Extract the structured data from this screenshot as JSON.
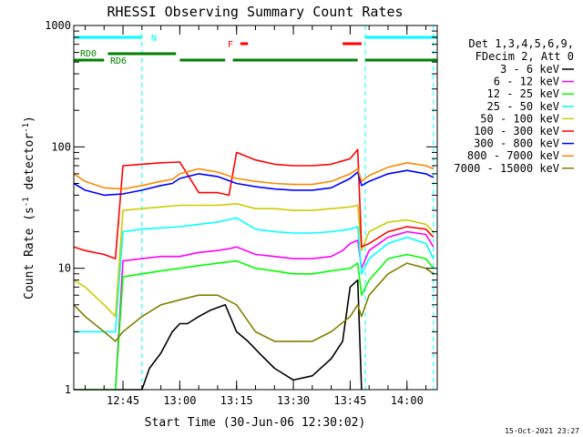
{
  "chart_data": {
    "type": "line",
    "title": "RHESSI Observing Summary Count Rates",
    "xlabel": "Start Time (30-Jun-06 12:30:02)",
    "ylabel_main": "Count Rate (s",
    "ylabel_sup1": "-1",
    "ylabel_mid": " detector",
    "ylabel_sup2": "-1",
    "ylabel_end": ")",
    "y_scale": "log",
    "ylim": [
      1,
      1000
    ],
    "xlim": [
      "12:32",
      "14:08"
    ],
    "x_ticks": [
      "12:45",
      "13:00",
      "13:15",
      "13:30",
      "13:45",
      "14:00"
    ],
    "y_ticks": [
      "1",
      "10",
      "100",
      "1000"
    ],
    "grid": false,
    "legend_position": "right",
    "legend_header": [
      "Det 1,3,4,5,6,9,",
      "FDecim 2, Att 0"
    ],
    "timestamp": "15-Oct-2021 23:27",
    "flags": {
      "night_label": "N",
      "flare_label": "F",
      "rd0_label": "RD0",
      "rd6_label": "RD6",
      "night_color": "#00ffff",
      "flare_color": "#ff0000",
      "decim_color": "#008000",
      "night_intervals": [
        [
          "12:32",
          "12:50"
        ],
        [
          "13:49",
          "14:08"
        ]
      ],
      "flare_intervals": [
        [
          "13:16",
          "13:18"
        ],
        [
          "13:43",
          "13:48"
        ]
      ],
      "decim_intervals": [
        [
          "12:32",
          "12:40"
        ],
        [
          "12:41",
          "12:59"
        ],
        [
          "13:00",
          "13:12"
        ],
        [
          "13:14",
          "13:47"
        ],
        [
          "13:49",
          "14:08"
        ]
      ],
      "night_boundaries": [
        "12:50",
        "13:49",
        "14:07"
      ]
    },
    "series": [
      {
        "name": "3 - 6 keV",
        "color": "#000000",
        "x": [
          "12:32",
          "12:40",
          "12:45",
          "12:50",
          "12:52",
          "12:55",
          "12:58",
          "13:00",
          "13:02",
          "13:05",
          "13:08",
          "13:12",
          "13:15",
          "13:18",
          "13:21",
          "13:25",
          "13:30",
          "13:35",
          "13:40",
          "13:43",
          "13:45",
          "13:47",
          "13:48"
        ],
        "y": [
          1,
          1,
          1,
          1,
          1.5,
          2,
          3,
          3.5,
          3.5,
          4,
          4.5,
          5,
          3,
          2.5,
          2,
          1.5,
          1.2,
          1.3,
          1.8,
          2.5,
          7,
          8,
          1
        ]
      },
      {
        "name": "6 - 12 keV",
        "color": "#ff00ff",
        "x": [
          "12:32",
          "12:35",
          "12:40",
          "12:43",
          "12:45",
          "12:50",
          "12:55",
          "13:00",
          "13:05",
          "13:10",
          "13:13",
          "13:15",
          "13:20",
          "13:25",
          "13:30",
          "13:35",
          "13:40",
          "13:43",
          "13:45",
          "13:47",
          "13:48",
          "13:50",
          "13:55",
          "14:00",
          "14:05",
          "14:07"
        ],
        "y": [
          1,
          1,
          1,
          1,
          11.5,
          12,
          12.5,
          12.5,
          13.5,
          14,
          14.5,
          15,
          13,
          12.5,
          12,
          12,
          12.5,
          14,
          16,
          17,
          10,
          14,
          18,
          20,
          19,
          15
        ]
      },
      {
        "name": "12 - 25 keV",
        "color": "#00ff00",
        "x": [
          "12:32",
          "12:40",
          "12:43",
          "12:45",
          "12:50",
          "12:55",
          "13:00",
          "13:05",
          "13:10",
          "13:15",
          "13:20",
          "13:25",
          "13:30",
          "13:35",
          "13:40",
          "13:45",
          "13:47",
          "13:48",
          "13:50",
          "13:55",
          "14:00",
          "14:05",
          "14:07"
        ],
        "y": [
          1,
          1,
          1,
          8.5,
          9,
          9.5,
          10,
          10.5,
          11,
          11.5,
          10,
          9.5,
          9,
          9,
          9.5,
          10,
          11,
          6,
          8,
          12,
          13,
          12,
          10
        ]
      },
      {
        "name": "25 - 50 keV",
        "color": "#00ffff",
        "x": [
          "12:32",
          "12:40",
          "12:43",
          "12:45",
          "12:50",
          "12:55",
          "13:00",
          "13:05",
          "13:10",
          "13:15",
          "13:20",
          "13:25",
          "13:30",
          "13:35",
          "13:40",
          "13:45",
          "13:47",
          "13:48",
          "13:50",
          "13:55",
          "14:00",
          "14:05",
          "14:07"
        ],
        "y": [
          3,
          3,
          3,
          20,
          21,
          21.5,
          22,
          23,
          24,
          26,
          21,
          20,
          19.5,
          19.5,
          20,
          21,
          22,
          9,
          12,
          16,
          18,
          16,
          12
        ]
      },
      {
        "name": "50 - 100 keV",
        "color": "#cccc00",
        "x": [
          "12:32",
          "12:35",
          "12:40",
          "12:43",
          "12:45",
          "12:50",
          "12:55",
          "13:00",
          "13:05",
          "13:10",
          "13:15",
          "13:20",
          "13:25",
          "13:30",
          "13:35",
          "13:40",
          "13:45",
          "13:47",
          "13:48",
          "13:50",
          "13:55",
          "14:00",
          "14:05",
          "14:07"
        ],
        "y": [
          8,
          7,
          5,
          4,
          30,
          31,
          32,
          33,
          33,
          33,
          34,
          31,
          31,
          30,
          30,
          31,
          32,
          33,
          14,
          20,
          24,
          25,
          23,
          20
        ]
      },
      {
        "name": "100 - 300 keV",
        "color": "#ff0000",
        "x": [
          "12:32",
          "12:35",
          "12:40",
          "12:43",
          "12:45",
          "12:50",
          "12:55",
          "13:00",
          "13:05",
          "13:10",
          "13:13",
          "13:15",
          "13:20",
          "13:25",
          "13:30",
          "13:35",
          "13:40",
          "13:45",
          "13:47",
          "13:48",
          "13:50",
          "13:55",
          "14:00",
          "14:05",
          "14:07"
        ],
        "y": [
          15,
          14,
          13,
          12,
          70,
          72,
          74,
          75,
          42,
          42,
          40,
          90,
          78,
          72,
          70,
          70,
          72,
          80,
          95,
          15,
          16,
          20,
          22,
          21,
          18
        ]
      },
      {
        "name": "300 - 800 keV",
        "color": "#0000ff",
        "x": [
          "12:32",
          "12:35",
          "12:40",
          "12:45",
          "12:50",
          "12:55",
          "12:58",
          "13:00",
          "13:05",
          "13:10",
          "13:15",
          "13:20",
          "13:25",
          "13:30",
          "13:35",
          "13:40",
          "13:45",
          "13:47",
          "13:48",
          "13:50",
          "13:55",
          "14:00",
          "14:05",
          "14:07"
        ],
        "y": [
          50,
          44,
          40,
          41,
          44,
          48,
          50,
          55,
          60,
          57,
          50,
          47,
          45,
          44,
          44,
          46,
          55,
          62,
          48,
          52,
          60,
          64,
          60,
          56
        ]
      },
      {
        "name": "800 - 7000 keV",
        "color": "#ff8800",
        "x": [
          "12:32",
          "12:35",
          "12:40",
          "12:45",
          "12:50",
          "12:55",
          "12:58",
          "13:00",
          "13:05",
          "13:10",
          "13:15",
          "13:20",
          "13:25",
          "13:30",
          "13:35",
          "13:40",
          "13:45",
          "13:47",
          "13:48",
          "13:50",
          "13:55",
          "14:00",
          "14:05",
          "14:07"
        ],
        "y": [
          60,
          52,
          46,
          45,
          48,
          52,
          54,
          60,
          66,
          62,
          55,
          52,
          50,
          49,
          49,
          52,
          60,
          66,
          52,
          58,
          68,
          74,
          70,
          66
        ]
      },
      {
        "name": "7000 - 15000 keV",
        "color": "#808000",
        "x": [
          "12:32",
          "12:35",
          "12:40",
          "12:43",
          "12:45",
          "12:50",
          "12:55",
          "13:00",
          "13:05",
          "13:10",
          "13:15",
          "13:20",
          "13:25",
          "13:30",
          "13:35",
          "13:40",
          "13:45",
          "13:47",
          "13:48",
          "13:50",
          "13:55",
          "14:00",
          "14:05",
          "14:07"
        ],
        "y": [
          5,
          4,
          3,
          2.5,
          3,
          4,
          5,
          5.5,
          6,
          6,
          5,
          3,
          2.5,
          2.5,
          2.5,
          3,
          4,
          5,
          4,
          6,
          9,
          11,
          10,
          9
        ]
      }
    ]
  }
}
